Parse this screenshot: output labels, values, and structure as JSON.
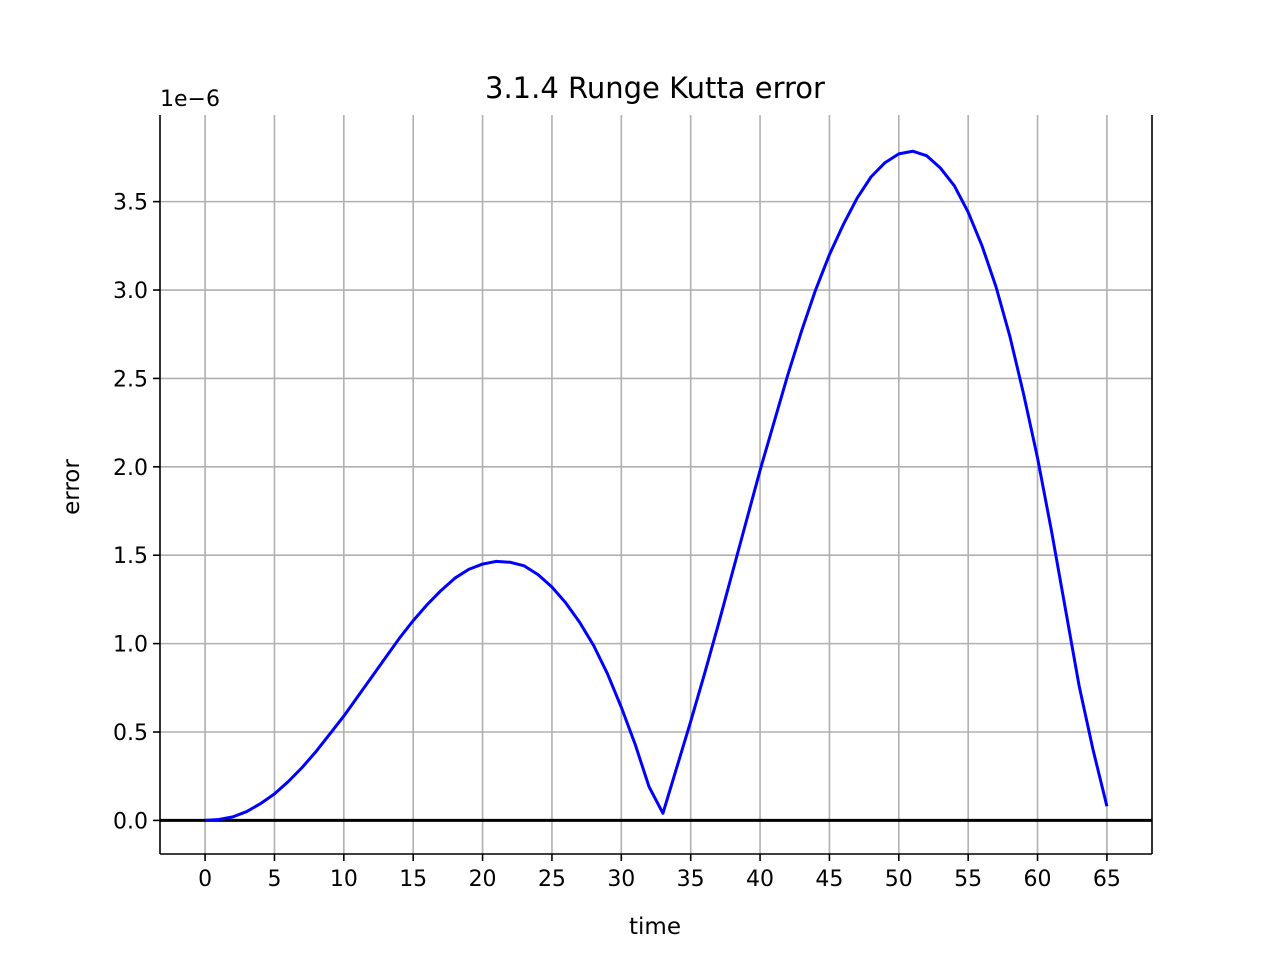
{
  "chart_data": {
    "type": "line",
    "title": "3.1.4 Runge Kutta error",
    "xlabel": "time",
    "ylabel": "error",
    "y_offset_text": "1e−6",
    "xlim": [
      -3.25,
      68.25
    ],
    "ylim": [
      -0.19,
      3.99
    ],
    "x_ticks": [
      0,
      5,
      10,
      15,
      20,
      25,
      30,
      35,
      40,
      45,
      50,
      55,
      60,
      65
    ],
    "y_ticks": [
      0.0,
      0.5,
      1.0,
      1.5,
      2.0,
      2.5,
      3.0,
      3.5
    ],
    "y_tick_labels": [
      "0.0",
      "0.5",
      "1.0",
      "1.5",
      "2.0",
      "2.5",
      "3.0",
      "3.5"
    ],
    "grid": true,
    "zero_line_color": "#000000",
    "series": [
      {
        "color": "#0000ff",
        "x": [
          0,
          1,
          2,
          3,
          4,
          5,
          6,
          7,
          8,
          9,
          10,
          11,
          12,
          13,
          14,
          15,
          16,
          17,
          18,
          19,
          20,
          21,
          22,
          23,
          24,
          25,
          26,
          27,
          28,
          29,
          30,
          31,
          32,
          33,
          34,
          35,
          36,
          37,
          38,
          39,
          40,
          41,
          42,
          43,
          44,
          45,
          46,
          47,
          48,
          49,
          50,
          51,
          52,
          53,
          54,
          55,
          56,
          57,
          58,
          59,
          60,
          61,
          62,
          63,
          64,
          65
        ],
        "y": [
          0.0,
          0.005,
          0.02,
          0.05,
          0.095,
          0.15,
          0.22,
          0.3,
          0.39,
          0.49,
          0.59,
          0.7,
          0.81,
          0.92,
          1.03,
          1.13,
          1.22,
          1.3,
          1.37,
          1.42,
          1.45,
          1.465,
          1.46,
          1.44,
          1.39,
          1.32,
          1.23,
          1.12,
          0.99,
          0.83,
          0.64,
          0.43,
          0.19,
          0.04,
          0.3,
          0.56,
          0.83,
          1.11,
          1.4,
          1.69,
          1.98,
          2.25,
          2.52,
          2.77,
          3.0,
          3.2,
          3.37,
          3.52,
          3.64,
          3.72,
          3.77,
          3.785,
          3.76,
          3.69,
          3.59,
          3.44,
          3.25,
          3.02,
          2.74,
          2.41,
          2.05,
          1.64,
          1.2,
          0.76,
          0.4,
          0.08
        ]
      }
    ]
  }
}
